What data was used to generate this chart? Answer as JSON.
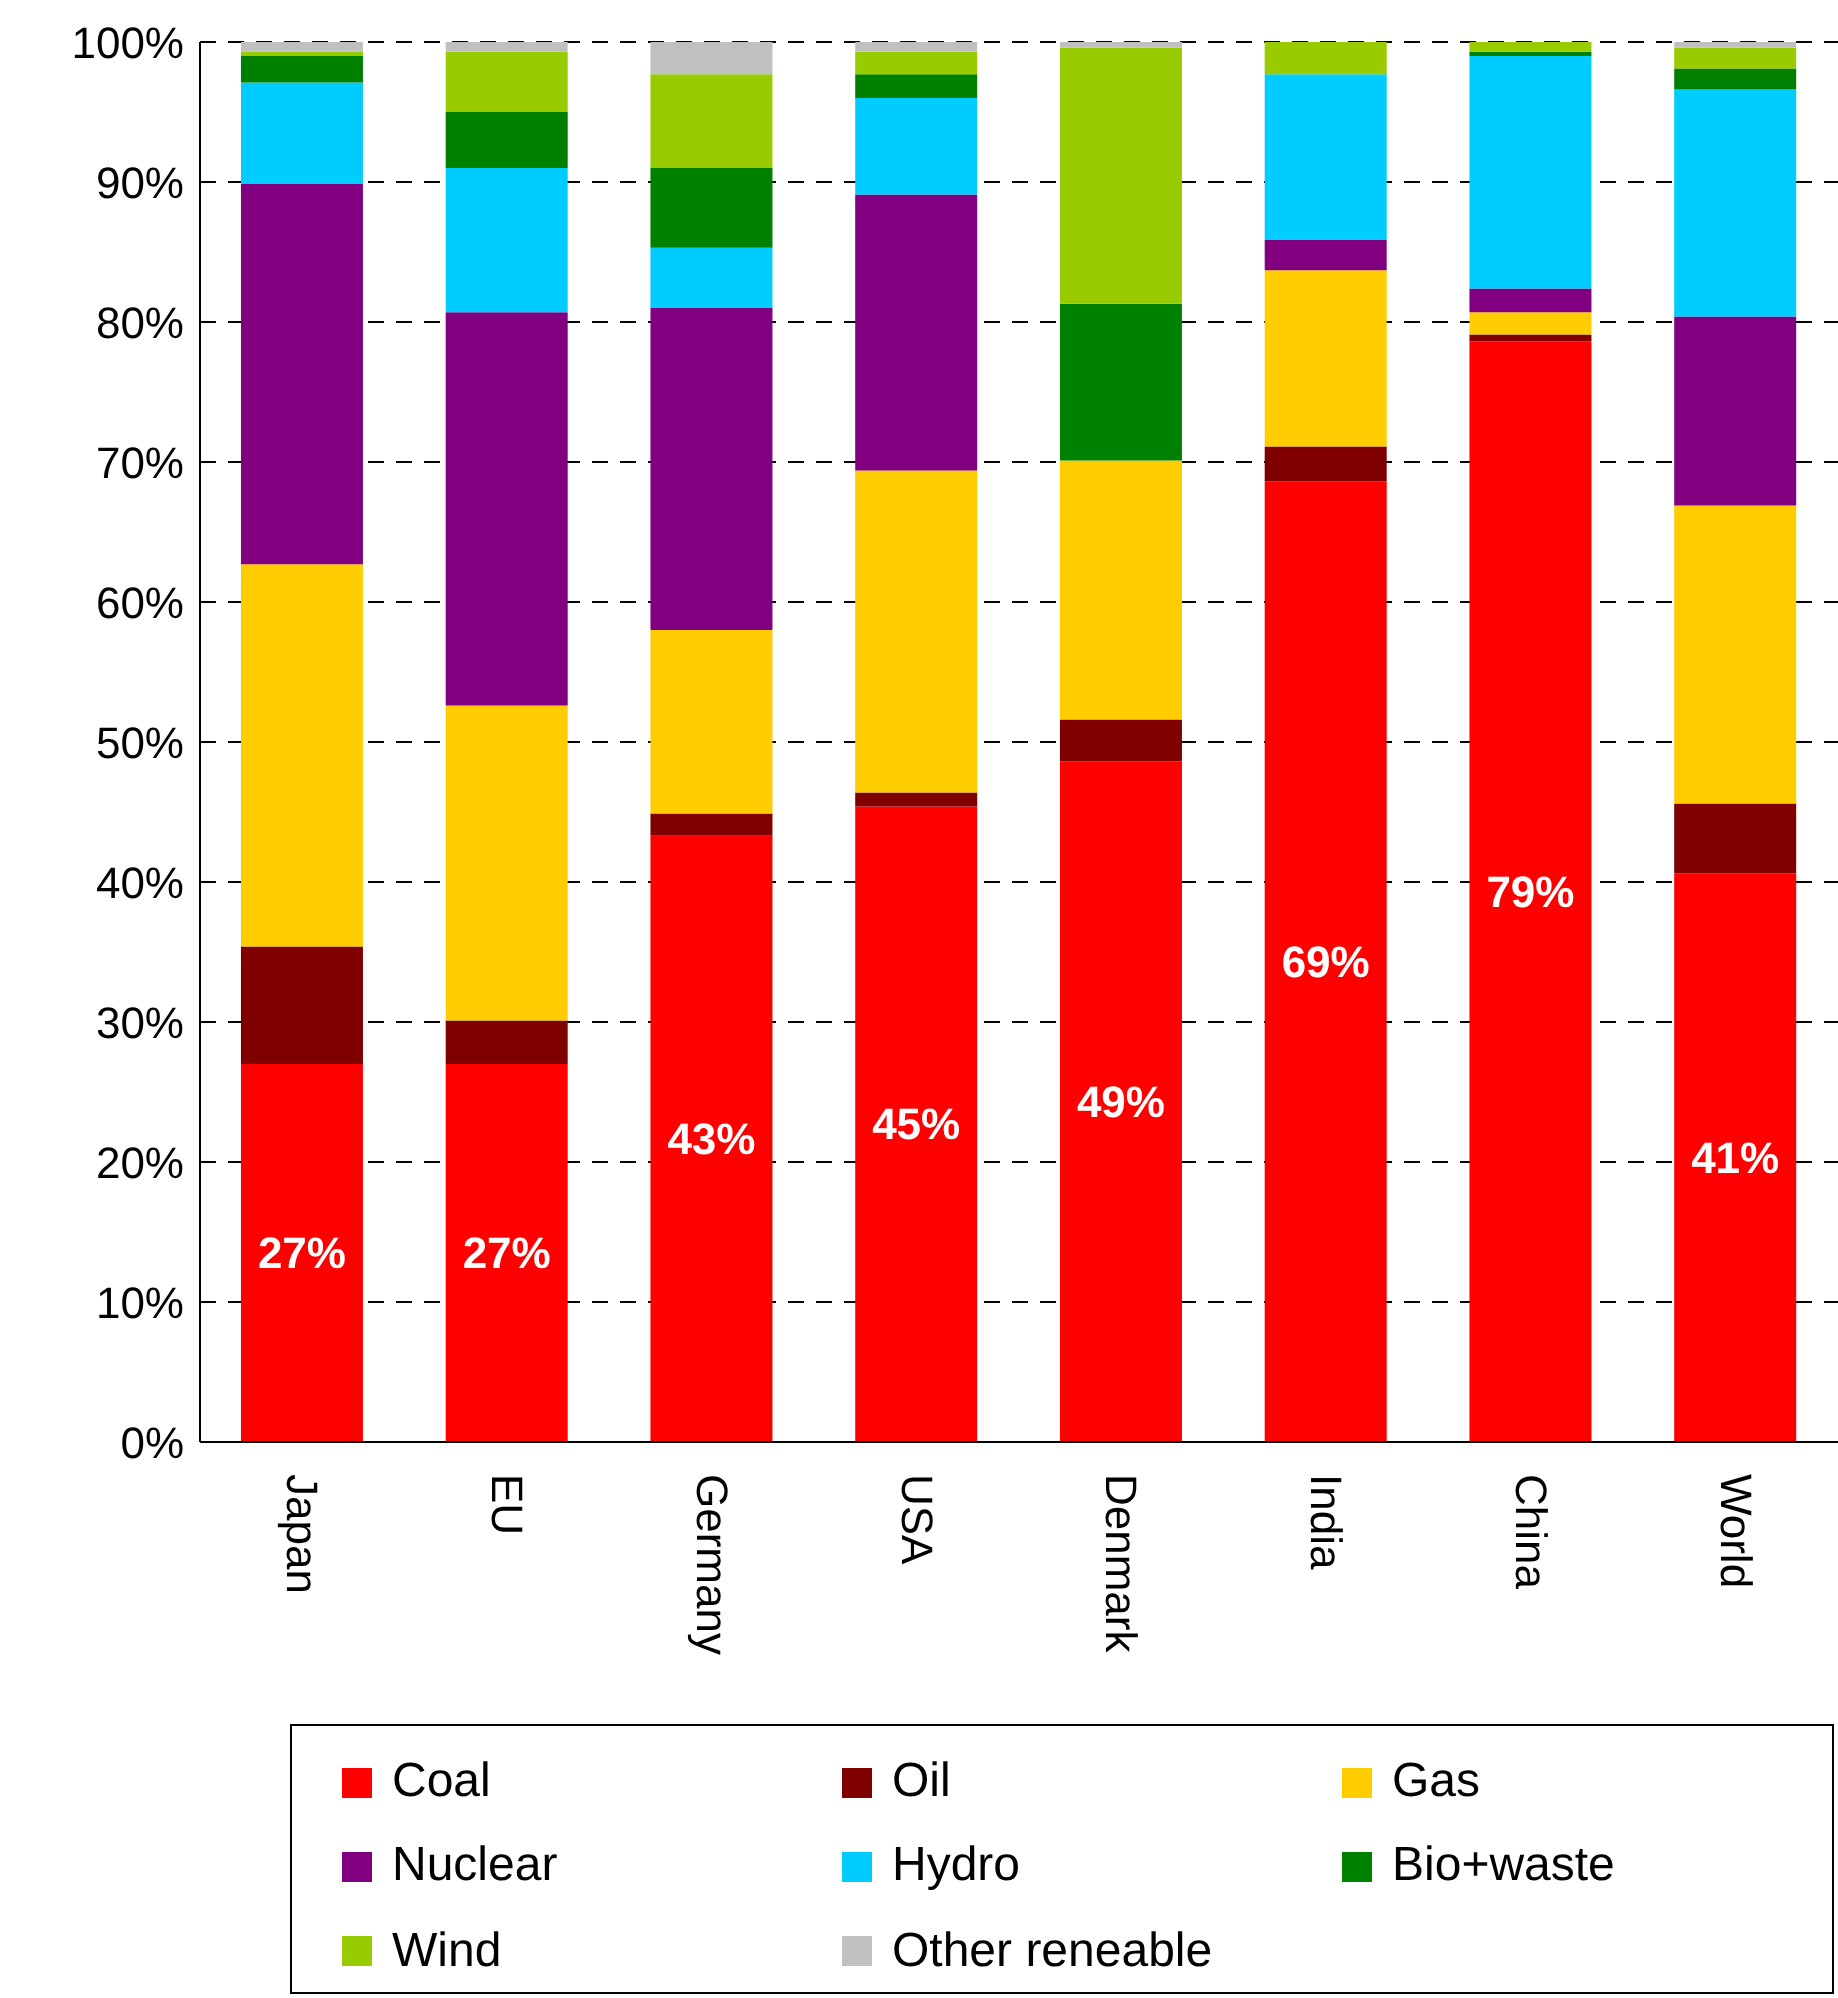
{
  "chart_data": {
    "type": "bar",
    "stacked": true,
    "categories": [
      "Japan",
      "EU",
      "Germany",
      "USA",
      "Denmark",
      "India",
      "China",
      "World"
    ],
    "series": [
      {
        "name": "Coal",
        "color": "#ff0000",
        "values": [
          27,
          27,
          43.3,
          45.4,
          48.6,
          68.6,
          78.6,
          40.6
        ],
        "value_labels": [
          "27%",
          "27%",
          "43%",
          "45%",
          "49%",
          "69%",
          "79%",
          "41%"
        ]
      },
      {
        "name": "Oil",
        "color": "#800000",
        "values": [
          8.4,
          3.1,
          1.6,
          1.0,
          3.0,
          2.5,
          0.5,
          5.0
        ]
      },
      {
        "name": "Gas",
        "color": "#ffcc00",
        "values": [
          27.3,
          22.5,
          13.1,
          23.0,
          18.5,
          12.6,
          1.6,
          21.3
        ]
      },
      {
        "name": "Nuclear",
        "color": "#800080",
        "values": [
          27.2,
          28.1,
          23.0,
          19.7,
          0,
          2.2,
          1.7,
          13.5
        ]
      },
      {
        "name": "Hydro",
        "color": "#00ccff",
        "values": [
          7.2,
          10.3,
          4.3,
          6.9,
          0,
          11.8,
          16.6,
          16.2
        ]
      },
      {
        "name": "Bio+waste",
        "color": "#008000",
        "values": [
          1.9,
          4.0,
          5.7,
          1.7,
          11.2,
          0,
          0.3,
          1.5
        ]
      },
      {
        "name": "Wind",
        "color": "#99cc00",
        "values": [
          0.3,
          4.3,
          6.7,
          1.6,
          18.3,
          2.3,
          0.7,
          1.5
        ]
      },
      {
        "name": "Other reneable",
        "color": "#c0c0c0",
        "values": [
          0.7,
          0.7,
          2.3,
          0.7,
          0.4,
          0,
          0,
          0.4
        ]
      }
    ],
    "ylim": [
      0,
      100
    ],
    "yticks": [
      {
        "value": 0,
        "label": "0%"
      },
      {
        "value": 10,
        "label": "10%"
      },
      {
        "value": 20,
        "label": "20%"
      },
      {
        "value": 30,
        "label": "30%"
      },
      {
        "value": 40,
        "label": "40%"
      },
      {
        "value": 50,
        "label": "50%"
      },
      {
        "value": 60,
        "label": "60%"
      },
      {
        "value": 70,
        "label": "70%"
      },
      {
        "value": 80,
        "label": "80%"
      },
      {
        "value": 90,
        "label": "90%"
      },
      {
        "value": 100,
        "label": "100%"
      }
    ],
    "grid": "y",
    "legend": "bottom"
  }
}
